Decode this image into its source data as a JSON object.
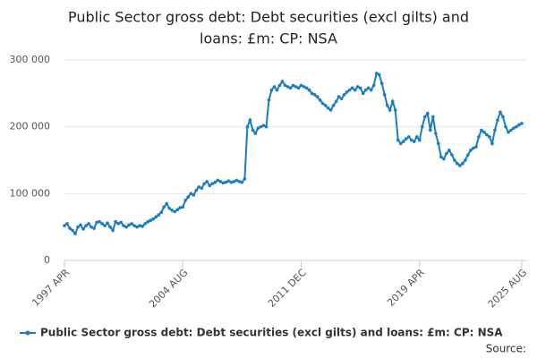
{
  "chart_data": {
    "type": "line",
    "title": [
      "Public Sector gross debt: Debt securities (excl gilts) and",
      "loans: £m: CP: NSA"
    ],
    "source": "Source:",
    "categories": [
      "1997 APR",
      null,
      null,
      null,
      null,
      null,
      null,
      null,
      null,
      null,
      null,
      null,
      null,
      null,
      null,
      null,
      null,
      null,
      null,
      null,
      null,
      null,
      null,
      null,
      null,
      null,
      null,
      null,
      null,
      null,
      null,
      null,
      null,
      null,
      null,
      null,
      null,
      null,
      null,
      null,
      null,
      null,
      null,
      null,
      "2004 AUG",
      null,
      null,
      null,
      null,
      null,
      null,
      null,
      null,
      null,
      null,
      null,
      null,
      null,
      null,
      null,
      null,
      null,
      null,
      null,
      null,
      null,
      null,
      null,
      null,
      null,
      null,
      null,
      null,
      null,
      null,
      null,
      null,
      null,
      null,
      null,
      null,
      null,
      null,
      null,
      null,
      null,
      null,
      null,
      "2011 DEC",
      null,
      null,
      null,
      null,
      null,
      null,
      null,
      null,
      null,
      null,
      null,
      null,
      null,
      null,
      null,
      null,
      null,
      null,
      null,
      null,
      null,
      null,
      null,
      null,
      null,
      null,
      null,
      null,
      null,
      null,
      null,
      null,
      null,
      null,
      null,
      null,
      null,
      null,
      null,
      null,
      null,
      null,
      null,
      "2019 APR",
      null,
      null,
      null,
      null,
      null,
      null,
      null,
      null,
      null,
      null,
      null,
      null,
      null,
      null,
      null,
      null,
      null,
      null,
      null,
      null,
      null,
      null,
      null,
      null,
      null,
      null,
      null,
      null,
      null,
      null,
      null,
      null,
      null,
      null,
      null,
      null,
      null,
      "2025 AUG"
    ],
    "series": [
      {
        "name": "Public Sector gross debt: Debt securities (excl gilts) and loans: £m: CP: NSA",
        "color": "#1a7dc0",
        "values": [
          52000,
          55000,
          48000,
          45000,
          40000,
          50000,
          53000,
          47000,
          52000,
          55000,
          50000,
          48000,
          57000,
          58000,
          55000,
          52000,
          56000,
          50000,
          45000,
          58000,
          55000,
          57000,
          52000,
          50000,
          53000,
          55000,
          52000,
          50000,
          52000,
          51000,
          55000,
          58000,
          60000,
          62000,
          65000,
          68000,
          72000,
          80000,
          85000,
          78000,
          75000,
          73000,
          76000,
          79000,
          80000,
          90000,
          95000,
          100000,
          98000,
          105000,
          110000,
          108000,
          115000,
          118000,
          112000,
          115000,
          117000,
          120000,
          118000,
          116000,
          117000,
          119000,
          117000,
          118000,
          120000,
          118000,
          117000,
          122000,
          200000,
          210000,
          195000,
          190000,
          198000,
          200000,
          202000,
          200000,
          240000,
          255000,
          260000,
          255000,
          262000,
          268000,
          262000,
          260000,
          258000,
          262000,
          260000,
          258000,
          262000,
          260000,
          258000,
          255000,
          250000,
          248000,
          245000,
          240000,
          235000,
          232000,
          228000,
          225000,
          232000,
          238000,
          245000,
          242000,
          248000,
          252000,
          255000,
          258000,
          255000,
          260000,
          258000,
          250000,
          255000,
          258000,
          255000,
          262000,
          280000,
          278000,
          265000,
          248000,
          232000,
          225000,
          238000,
          225000,
          180000,
          175000,
          178000,
          182000,
          185000,
          180000,
          178000,
          185000,
          180000,
          200000,
          215000,
          220000,
          195000,
          215000,
          190000,
          175000,
          155000,
          152000,
          160000,
          165000,
          158000,
          150000,
          145000,
          142000,
          145000,
          150000,
          158000,
          165000,
          168000,
          170000,
          185000,
          195000,
          192000,
          188000,
          185000,
          175000,
          195000,
          210000,
          222000,
          215000,
          200000,
          192000,
          195000,
          198000,
          200000,
          203000,
          205000
        ]
      }
    ],
    "ylim": [
      0,
      300000
    ],
    "yticks": [
      0,
      {
        "value": 100000,
        "label": "100 000"
      },
      {
        "value": 200000,
        "label": "200 000"
      },
      {
        "value": 300000,
        "label": "300 000"
      }
    ],
    "grid": true
  }
}
